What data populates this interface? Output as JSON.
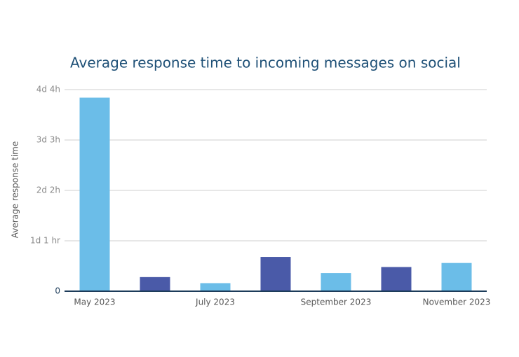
{
  "chart_data": {
    "type": "bar",
    "title": "Average response time to incoming messages on social",
    "y_label": "Average response time",
    "categories": [
      "May 2023",
      null,
      "July 2023",
      null,
      "September 2023",
      null,
      "November 2023"
    ],
    "values": [
      96,
      7,
      4,
      17,
      9,
      12,
      14
    ],
    "colors": [
      "#6bbde8",
      "#4a5aa8",
      "#6bbde8",
      "#4a5aa8",
      "#6bbde8",
      "#4a5aa8",
      "#6bbde8"
    ],
    "ylim": [
      0,
      100
    ],
    "yticks": [
      0,
      {
        "value": 25,
        "label": "1d 1 hr"
      },
      {
        "value": 50,
        "label": "2d 2h"
      },
      {
        "value": 75,
        "label": "3d 3h"
      },
      {
        "value": 100,
        "label": "4d 4h"
      }
    ],
    "grid": true
  }
}
